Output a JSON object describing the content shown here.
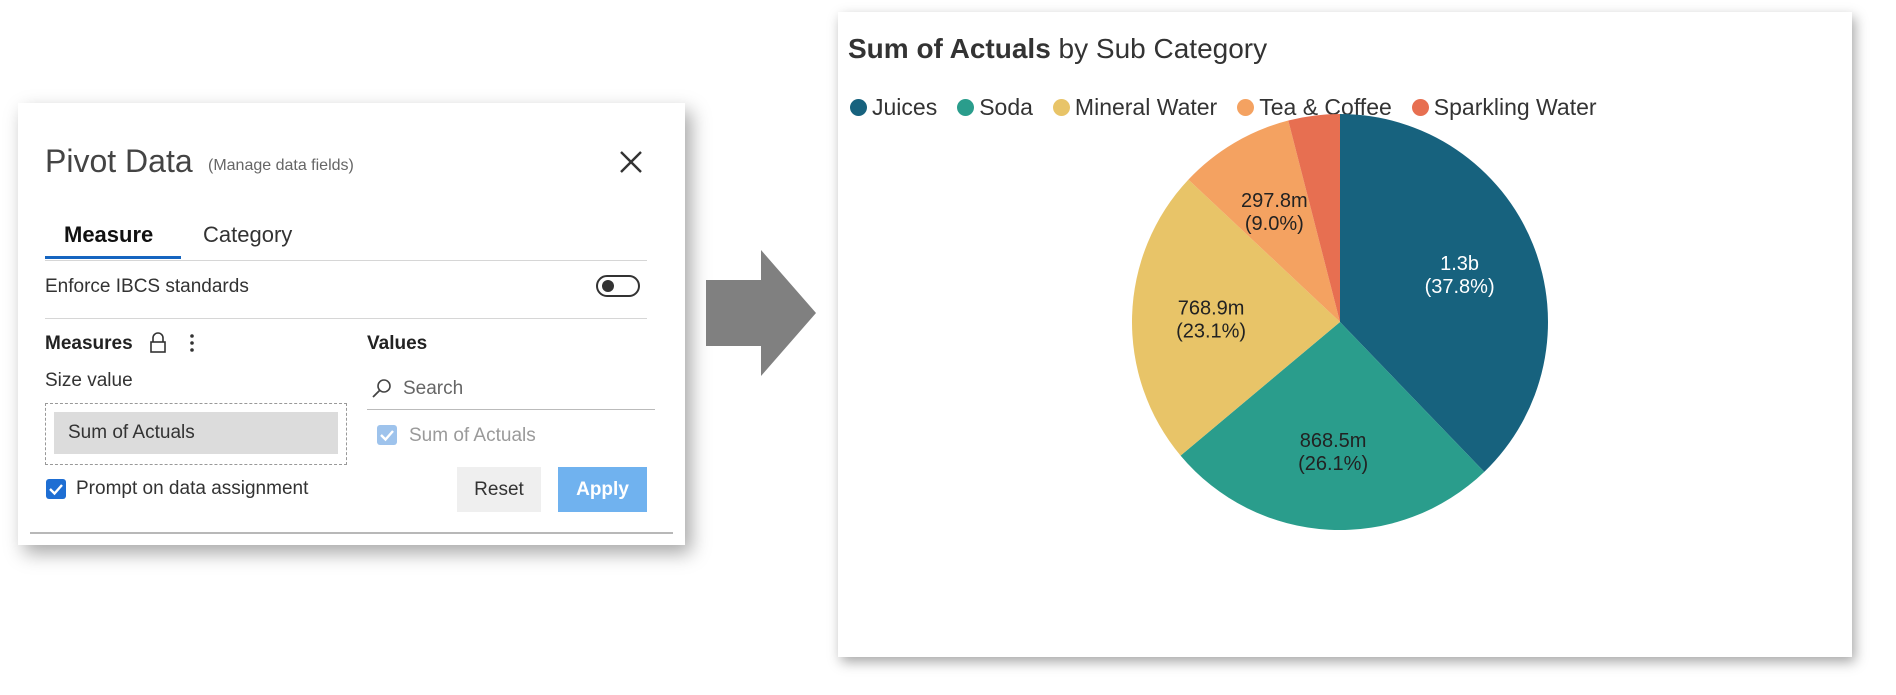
{
  "dialog": {
    "title": "Pivot Data",
    "subtitle": "(Manage data fields)",
    "tabs": [
      {
        "label": "Measure",
        "active": true
      },
      {
        "label": "Category",
        "active": false
      }
    ],
    "enforce_label": "Enforce IBCS standards",
    "enforce_on": false,
    "measures_heading": "Measures",
    "size_value_label": "Size value",
    "measure_chip": "Sum of Actuals",
    "prompt_label": "Prompt on data assignment",
    "prompt_checked": true,
    "values_heading": "Values",
    "search_placeholder": "Search",
    "value_item": "Sum of Actuals",
    "value_checked": true,
    "reset_label": "Reset",
    "apply_label": "Apply",
    "accent": "#1565c0"
  },
  "chart": {
    "title_bold": "Sum of Actuals",
    "title_rest": " by Sub Category"
  },
  "chart_data": {
    "type": "pie",
    "title": "Sum of Actuals by Sub Category",
    "legend_position": "top-left",
    "categories": [
      "Juices",
      "Soda",
      "Mineral Water",
      "Tea & Coffee",
      "Sparkling Water"
    ],
    "colors": [
      "#17627e",
      "#2a9d8c",
      "#e8c468",
      "#f4a261",
      "#e76f51"
    ],
    "label_colors": [
      "#ffffff",
      "#222222",
      "#222222",
      "#222222",
      "#222222"
    ],
    "values": [
      37.8,
      26.1,
      23.1,
      9.0,
      4.0
    ],
    "value_labels": [
      "1.3b",
      "868.5m",
      "768.9m",
      "297.8m",
      ""
    ],
    "percent_labels": [
      "(37.8%)",
      "(26.1%)",
      "(23.1%)",
      "(9.0%)",
      ""
    ]
  }
}
